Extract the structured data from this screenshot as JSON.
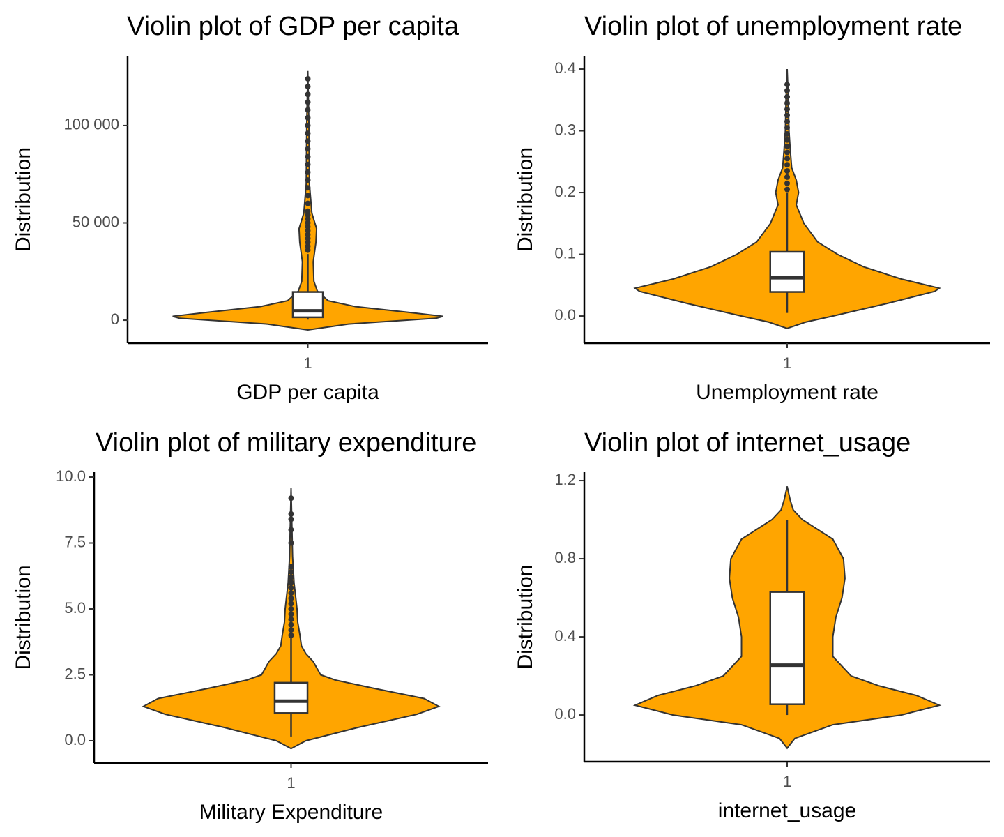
{
  "chart_data": [
    {
      "type": "violin",
      "title": "Violin plot of GDP per capita",
      "x_label": "GDP per capita",
      "y_label": "Distribution",
      "categories": [
        "1"
      ],
      "color": "#FFA500",
      "ylim": [
        -11800,
        135800
      ],
      "yticks": [
        0,
        {
          "value": 50000,
          "label": "50 000"
        },
        {
          "value": 100000,
          "label": "100 000"
        }
      ],
      "density": {
        "y": [
          -5000,
          -2000,
          1000,
          2000,
          4000,
          7000,
          10000,
          15000,
          20000,
          30000,
          40000,
          47000,
          55000,
          70000,
          100000,
          128000
        ],
        "width": [
          0,
          0.3,
          0.95,
          1.0,
          0.75,
          0.35,
          0.15,
          0.07,
          0.045,
          0.04,
          0.06,
          0.065,
          0.03,
          0.012,
          0.008,
          0
        ]
      },
      "box": {
        "lower_whisker": 300,
        "q1": 1500,
        "median": 4800,
        "q3": 14500,
        "upper_whisker": 34000
      },
      "outliers": [
        36000,
        38000,
        40000,
        42000,
        44000,
        46000,
        48000,
        50000,
        52000,
        54000,
        56000,
        60000,
        64000,
        68000,
        72000,
        76000,
        80000,
        84000,
        88000,
        92000,
        96000,
        100000,
        104000,
        108000,
        112000,
        116000,
        120000,
        124000
      ]
    },
    {
      "type": "violin",
      "title": "Violin plot of unemployment rate",
      "x_label": "Unemployment rate",
      "y_label": "Distribution",
      "categories": [
        "1"
      ],
      "color": "#FFA500",
      "ylim": [
        -0.044,
        0.4215
      ],
      "yticks": [
        {
          "value": 0,
          "label": "0.0"
        },
        0.1,
        0.2,
        0.3,
        0.4
      ],
      "density": {
        "y": [
          -0.02,
          -0.01,
          0.0,
          0.02,
          0.04,
          0.045,
          0.06,
          0.08,
          0.1,
          0.12,
          0.15,
          0.18,
          0.2,
          0.22,
          0.24,
          0.27,
          0.3,
          0.35,
          0.4
        ],
        "width": [
          0,
          0.12,
          0.3,
          0.65,
          0.97,
          1.0,
          0.75,
          0.5,
          0.33,
          0.2,
          0.11,
          0.06,
          0.075,
          0.06,
          0.03,
          0.02,
          0.012,
          0.008,
          0
        ]
      },
      "box": {
        "lower_whisker": 0.005,
        "q1": 0.039,
        "median": 0.062,
        "q3": 0.104,
        "upper_whisker": 0.2
      },
      "outliers": [
        0.205,
        0.215,
        0.225,
        0.235,
        0.245,
        0.255,
        0.265,
        0.275,
        0.285,
        0.295,
        0.305,
        0.315,
        0.325,
        0.335,
        0.345,
        0.355,
        0.365,
        0.375
      ]
    },
    {
      "type": "violin",
      "title": "Violin plot of military expenditure",
      "x_label": "Military Expenditure",
      "y_label": "Distribution",
      "categories": [
        "1"
      ],
      "color": "#FFA500",
      "ylim": [
        -0.847,
        10.185
      ],
      "yticks": [
        {
          "value": 0,
          "label": "0.0"
        },
        2.5,
        {
          "value": 5,
          "label": "5.0"
        },
        7.5,
        {
          "value": 10,
          "label": "10.0"
        }
      ],
      "density": {
        "y": [
          -0.3,
          0.0,
          0.5,
          1.0,
          1.3,
          1.6,
          2.0,
          2.3,
          2.5,
          3,
          3.3,
          3.6,
          4,
          4.5,
          5,
          5.5,
          6,
          7,
          8,
          9.6
        ],
        "width": [
          0,
          0.1,
          0.45,
          0.85,
          1.0,
          0.9,
          0.55,
          0.3,
          0.2,
          0.15,
          0.1,
          0.07,
          0.06,
          0.045,
          0.04,
          0.03,
          0.02,
          0.01,
          0.006,
          0
        ]
      },
      "box": {
        "lower_whisker": 0.16,
        "q1": 1.05,
        "median": 1.5,
        "q3": 2.2,
        "upper_whisker": 3.9
      },
      "outliers": [
        4.0,
        4.2,
        4.4,
        4.6,
        4.8,
        5.0,
        5.2,
        5.4,
        5.6,
        5.8,
        6.0,
        6.2,
        6.4,
        6.6,
        7.5,
        8.0,
        8.4,
        8.6,
        9.2
      ]
    },
    {
      "type": "violin",
      "title": "Violin plot of internet_usage",
      "x_label": "internet_usage",
      "y_label": "Distribution",
      "categories": [
        "1"
      ],
      "color": "#FFA500",
      "ylim": [
        -0.239,
        1.243
      ],
      "yticks": [
        {
          "value": 0,
          "label": "0.0"
        },
        0.4,
        0.8,
        1.2
      ],
      "density": {
        "y": [
          -0.17,
          -0.12,
          -0.05,
          0.0,
          0.05,
          0.1,
          0.15,
          0.2,
          0.3,
          0.4,
          0.5,
          0.6,
          0.7,
          0.8,
          0.9,
          0.95,
          1.0,
          1.05,
          1.1,
          1.17
        ],
        "width": [
          0,
          0.05,
          0.3,
          0.75,
          1.0,
          0.85,
          0.6,
          0.42,
          0.3,
          0.3,
          0.32,
          0.36,
          0.38,
          0.37,
          0.3,
          0.2,
          0.1,
          0.04,
          0.02,
          0
        ]
      },
      "box": {
        "lower_whisker": 0.0,
        "q1": 0.055,
        "median": 0.255,
        "q3": 0.63,
        "upper_whisker": 1.0
      },
      "outliers": []
    }
  ]
}
